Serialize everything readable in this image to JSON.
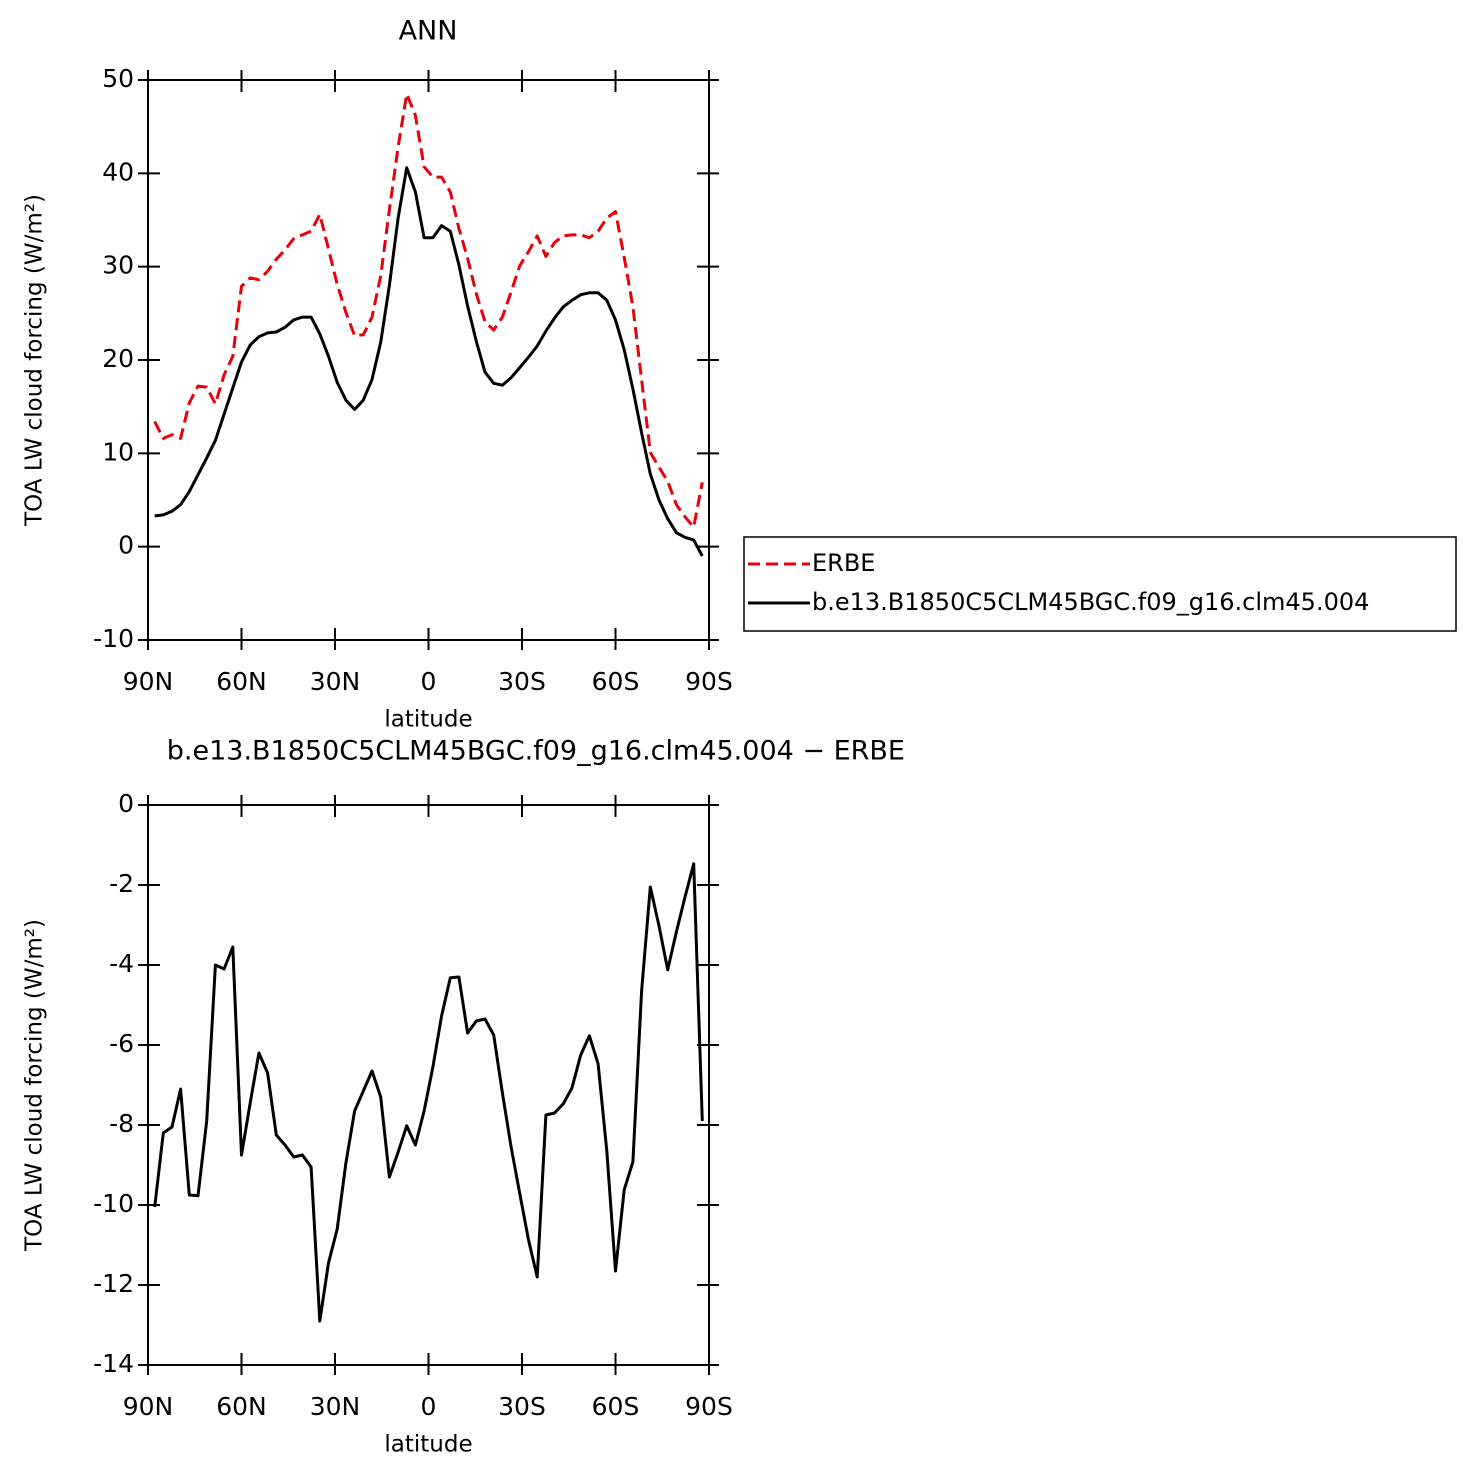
{
  "chart_data": [
    {
      "type": "line",
      "title": "ANN",
      "xlabel": "latitude",
      "ylabel": "TOA LW cloud forcing (W/m²)",
      "x": [
        87.86,
        85.1,
        82.31,
        79.53,
        76.74,
        73.95,
        71.16,
        68.37,
        65.58,
        62.79,
        60.0,
        57.21,
        54.42,
        51.63,
        48.84,
        46.04,
        43.25,
        40.46,
        37.67,
        34.88,
        32.09,
        29.3,
        26.51,
        23.72,
        20.93,
        18.14,
        15.35,
        12.56,
        9.77,
        6.98,
        4.19,
        1.4,
        -1.4,
        -4.19,
        -6.98,
        -9.77,
        -12.56,
        -15.35,
        -18.14,
        -20.93,
        -23.72,
        -26.51,
        -29.3,
        -32.09,
        -34.88,
        -37.67,
        -40.46,
        -43.25,
        -46.04,
        -48.84,
        -51.63,
        -54.42,
        -57.21,
        -60.0,
        -62.79,
        -65.58,
        -68.37,
        -71.16,
        -73.95,
        -76.74,
        -79.53,
        -82.31,
        -85.1,
        -87.86
      ],
      "xlim": [
        90,
        -90
      ],
      "xticks": [
        {
          "value": 90,
          "label": "90N"
        },
        {
          "value": 60,
          "label": "60N"
        },
        {
          "value": 30,
          "label": "30N"
        },
        0,
        {
          "value": -30,
          "label": "30S"
        },
        {
          "value": -60,
          "label": "60S"
        },
        {
          "value": -90,
          "label": "90S"
        }
      ],
      "ylim": [
        -10,
        50
      ],
      "yticks": [
        -10,
        0,
        10,
        20,
        30,
        40,
        50
      ],
      "legend": "right",
      "series": [
        {
          "name": "ERBE",
          "color": "#e8000b",
          "dash": true,
          "values": [
            13.4,
            11.6,
            12.0,
            11.6,
            15.4,
            17.2,
            17.1,
            15.3,
            18.4,
            20.4,
            27.9,
            28.8,
            28.6,
            29.5,
            30.8,
            31.8,
            33.0,
            33.4,
            33.8,
            35.6,
            31.9,
            28.1,
            25.1,
            22.6,
            22.7,
            24.6,
            29.0,
            36.1,
            42.8,
            48.5,
            46.2,
            40.7,
            39.6,
            39.6,
            38.0,
            34.1,
            30.9,
            27.1,
            24.1,
            23.2,
            24.6,
            27.3,
            30.1,
            31.6,
            33.3,
            31.1,
            32.6,
            33.3,
            33.4,
            33.4,
            33.1,
            33.8,
            35.2,
            35.9,
            31.0,
            25.7,
            17.9,
            10.1,
            8.5,
            7.0,
            4.5,
            3.2,
            2.1,
            6.9
          ]
        },
        {
          "name": "b.e13.B1850C5CLM45BGC.f09_g16.clm45.004",
          "color": "#000000",
          "dash": false,
          "values": [
            3.3,
            3.4,
            3.8,
            4.5,
            5.9,
            7.7,
            9.5,
            11.4,
            14.2,
            17.0,
            19.8,
            21.6,
            22.5,
            22.9,
            23.0,
            23.5,
            24.3,
            24.6,
            24.6,
            22.8,
            20.4,
            17.6,
            15.7,
            14.7,
            15.7,
            17.9,
            21.9,
            28.0,
            35.2,
            40.6,
            38.0,
            33.1,
            33.1,
            34.4,
            33.8,
            30.2,
            25.8,
            22.0,
            18.7,
            17.5,
            17.3,
            18.1,
            19.2,
            20.3,
            21.5,
            23.1,
            24.5,
            25.7,
            26.4,
            27.0,
            27.2,
            27.2,
            26.4,
            24.3,
            21.1,
            16.9,
            12.2,
            7.8,
            5.0,
            3.0,
            1.5,
            1.0,
            0.7,
            -1.0
          ]
        }
      ]
    },
    {
      "type": "line",
      "title": "b.e13.B1850C5CLM45BGC.f09_g16.clm45.004 − ERBE",
      "xlabel": "latitude",
      "ylabel": "TOA LW cloud forcing (W/m²)",
      "x": [
        87.86,
        85.1,
        82.31,
        79.53,
        76.74,
        73.95,
        71.16,
        68.37,
        65.58,
        62.79,
        60.0,
        57.21,
        54.42,
        51.63,
        48.84,
        46.04,
        43.25,
        40.46,
        37.67,
        34.88,
        32.09,
        29.3,
        26.51,
        23.72,
        20.93,
        18.14,
        15.35,
        12.56,
        9.77,
        6.98,
        4.19,
        1.4,
        -1.4,
        -4.19,
        -6.98,
        -9.77,
        -12.56,
        -15.35,
        -18.14,
        -20.93,
        -23.72,
        -26.51,
        -29.3,
        -32.09,
        -34.88,
        -37.67,
        -40.46,
        -43.25,
        -46.04,
        -48.84,
        -51.63,
        -54.42,
        -57.21,
        -60.0,
        -62.79,
        -65.58,
        -68.37,
        -71.16,
        -73.95,
        -76.74,
        -79.53,
        -82.31,
        -85.1,
        -87.86
      ],
      "xlim": [
        90,
        -90
      ],
      "xticks": [
        {
          "value": 90,
          "label": "90N"
        },
        {
          "value": 60,
          "label": "60N"
        },
        {
          "value": 30,
          "label": "30N"
        },
        0,
        {
          "value": -30,
          "label": "30S"
        },
        {
          "value": -60,
          "label": "60S"
        },
        {
          "value": -90,
          "label": "90S"
        }
      ],
      "ylim": [
        -14,
        0
      ],
      "yticks": [
        -14,
        -12,
        -10,
        -8,
        -6,
        -4,
        -2,
        0
      ],
      "series": [
        {
          "color": "#000000",
          "dash": false,
          "values": [
            -10.05,
            -8.2,
            -8.05,
            -7.1,
            -9.75,
            -9.77,
            -7.9,
            -4.0,
            -4.1,
            -3.55,
            -8.75,
            -7.45,
            -6.2,
            -6.7,
            -8.25,
            -8.5,
            -8.8,
            -8.75,
            -9.05,
            -12.9,
            -11.45,
            -10.6,
            -8.95,
            -7.65,
            -7.15,
            -6.65,
            -7.3,
            -9.3,
            -8.68,
            -8.02,
            -8.5,
            -7.65,
            -6.55,
            -5.27,
            -4.32,
            -4.3,
            -5.7,
            -5.4,
            -5.35,
            -5.75,
            -7.2,
            -8.55,
            -9.72,
            -10.87,
            -11.8,
            -7.75,
            -7.7,
            -7.47,
            -7.07,
            -6.25,
            -5.77,
            -6.47,
            -8.65,
            -11.65,
            -9.62,
            -8.92,
            -4.65,
            -2.05,
            -3.02,
            -4.12,
            -3.17,
            -2.3,
            -1.47,
            -7.9
          ]
        }
      ]
    }
  ]
}
